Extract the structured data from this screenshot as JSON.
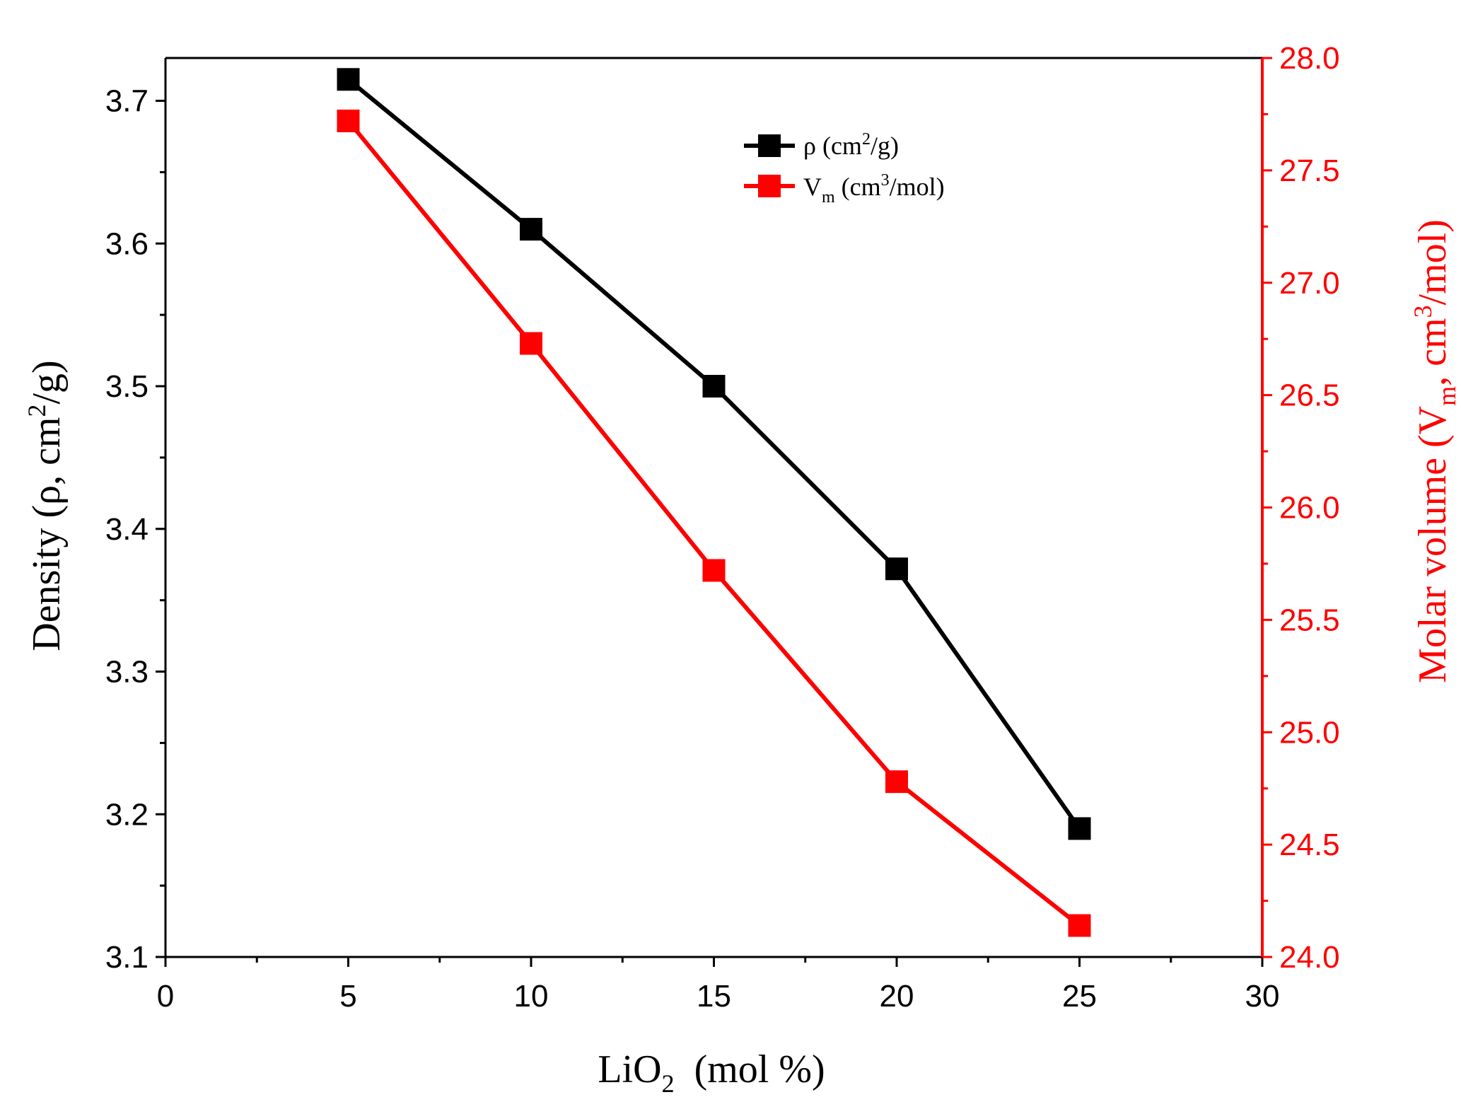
{
  "chart_data": {
    "type": "line",
    "xlabel": {
      "main": "LiO",
      "sub": "2",
      "rest": "  (mol %)"
    },
    "ylabel_left": {
      "main": "Density (ρ, cm",
      "sup": "2",
      "rest": "/g)"
    },
    "ylabel_right": {
      "main": "Molar volume (V",
      "sub": "m",
      "mid": ", cm",
      "sup": "3",
      "rest": "/mol)"
    },
    "x": [
      5,
      10,
      15,
      20,
      25
    ],
    "xlim": [
      0,
      30
    ],
    "xticks": [
      0,
      5,
      10,
      15,
      20,
      25,
      30
    ],
    "xtick_labels": [
      "0",
      "5",
      "10",
      "15",
      "20",
      "25",
      "30"
    ],
    "ylim_left": [
      3.1,
      3.73
    ],
    "yticks_left": [
      3.1,
      3.2,
      3.3,
      3.4,
      3.5,
      3.6,
      3.7
    ],
    "ytick_labels_left": [
      "3.1",
      "3.2",
      "3.3",
      "3.4",
      "3.5",
      "3.6",
      "3.7"
    ],
    "ylim_right": [
      24.0,
      28.0
    ],
    "yticks_right": [
      24.0,
      24.5,
      25.0,
      25.5,
      26.0,
      26.5,
      27.0,
      27.5,
      28.0
    ],
    "ytick_labels_right": [
      "24.0",
      "24.5",
      "25.0",
      "25.5",
      "26.0",
      "26.5",
      "27.0",
      "27.5",
      "28.0"
    ],
    "series": [
      {
        "name": "density",
        "legend": {
          "main": "ρ (cm",
          "sup": "2",
          "rest": "/g)"
        },
        "axis": "left",
        "color": "#000000",
        "values": [
          3.715,
          3.61,
          3.5,
          3.372,
          3.19
        ]
      },
      {
        "name": "molar-volume",
        "legend": {
          "main": "V",
          "sub": "m",
          "rest": " (cm",
          "sup": "3",
          "rest2": "/mol)"
        },
        "axis": "right",
        "color": "#ff0000",
        "values": [
          27.72,
          26.73,
          25.72,
          24.78,
          24.14
        ]
      }
    ],
    "legend_position": "top-center",
    "grid": false
  }
}
